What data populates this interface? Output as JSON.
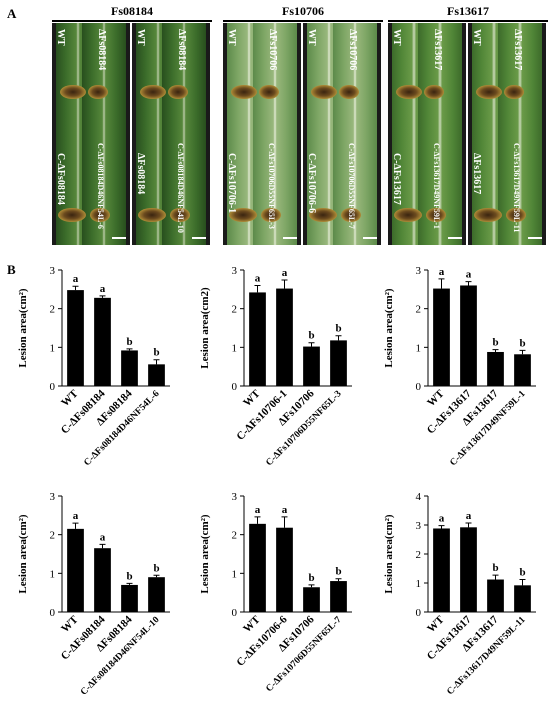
{
  "panel_a": {
    "letter": "A",
    "groups": [
      {
        "title": "Fs08184",
        "labels": [
          "WT",
          "ΔFs08184",
          "C-ΔFs08184",
          "C-ΔFs08184D46NF54L-6",
          "WT",
          "ΔFs08184",
          "ΔFs08184",
          "C-ΔFs08184D46NF54L-10"
        ]
      },
      {
        "title": "Fs10706",
        "labels": [
          "WT",
          "ΔFs10706",
          "C-ΔFs10706-1",
          "C-ΔFs10706D55NF65L-3",
          "WT",
          "ΔFs10706",
          "C-ΔFs10706-6",
          "C-ΔFs10706D55NF65L-7"
        ]
      },
      {
        "title": "Fs13617",
        "labels": [
          "WT",
          "ΔFs13617",
          "C-ΔFs13617",
          "C-ΔFs13617D49NF59L-1",
          "WT",
          "ΔFs13617",
          "ΔFs13617",
          "C-ΔFs13617D49NF59L-11"
        ]
      }
    ]
  },
  "panel_b": {
    "letter": "B"
  },
  "chart_data": [
    {
      "type": "bar",
      "categories": [
        "WT",
        "C-ΔFs08184",
        "ΔFs08184",
        "C-ΔFs08184D46NF54L-6"
      ],
      "values": [
        2.48,
        2.28,
        0.92,
        0.56
      ],
      "errors": [
        0.1,
        0.05,
        0.04,
        0.12
      ],
      "sig_letters": [
        "a",
        "a",
        "b",
        "b"
      ],
      "ylabel": "Lesion area(cm²)",
      "ylim": [
        0,
        3
      ],
      "yticks": [
        0,
        1,
        2,
        3
      ]
    },
    {
      "type": "bar",
      "categories": [
        "WT",
        "C-ΔFs10706-1",
        "ΔFs10706",
        "C-ΔFs10706D55NF65L-3"
      ],
      "values": [
        2.42,
        2.52,
        1.02,
        1.18
      ],
      "errors": [
        0.18,
        0.22,
        0.1,
        0.12
      ],
      "sig_letters": [
        "a",
        "a",
        "b",
        "b"
      ],
      "ylabel": "Lesion area(cm2)",
      "ylim": [
        0,
        3
      ],
      "yticks": [
        0,
        1,
        2,
        3
      ]
    },
    {
      "type": "bar",
      "categories": [
        "WT",
        "C-ΔFs13617",
        "ΔFs13617",
        "C-ΔFs13617D49NF59L-1"
      ],
      "values": [
        2.52,
        2.6,
        0.88,
        0.82
      ],
      "errors": [
        0.25,
        0.1,
        0.06,
        0.1
      ],
      "sig_letters": [
        "a",
        "a",
        "b",
        "b"
      ],
      "ylabel": "Lesion area(cm²)",
      "ylim": [
        0,
        3
      ],
      "yticks": [
        0,
        1,
        2,
        3
      ]
    },
    {
      "type": "bar",
      "categories": [
        "WT",
        "C-ΔFs08184",
        "ΔFs08184",
        "C-ΔFs08184D46NF54L-10"
      ],
      "values": [
        2.15,
        1.65,
        0.7,
        0.9
      ],
      "errors": [
        0.15,
        0.1,
        0.04,
        0.05
      ],
      "sig_letters": [
        "a",
        "a",
        "b",
        "b"
      ],
      "ylabel": "Lesion area(cm²)",
      "ylim": [
        0,
        3
      ],
      "yticks": [
        0,
        1,
        2,
        3
      ]
    },
    {
      "type": "bar",
      "categories": [
        "WT",
        "C-ΔFs10706-6",
        "ΔFs10706",
        "C-ΔFs10706D55NF65L-7"
      ],
      "values": [
        2.28,
        2.18,
        0.64,
        0.8
      ],
      "errors": [
        0.18,
        0.28,
        0.06,
        0.06
      ],
      "sig_letters": [
        "a",
        "a",
        "b",
        "b"
      ],
      "ylabel": "Lesion area(cm²)",
      "ylim": [
        0,
        3
      ],
      "yticks": [
        0,
        1,
        2,
        3
      ]
    },
    {
      "type": "bar",
      "categories": [
        "WT",
        "C-ΔFs13617",
        "ΔFs13617",
        "C-ΔFs13617D49NF59L-11"
      ],
      "values": [
        2.88,
        2.92,
        1.12,
        0.92
      ],
      "errors": [
        0.1,
        0.15,
        0.15,
        0.2
      ],
      "sig_letters": [
        "a",
        "a",
        "b",
        "b"
      ],
      "ylabel": "Lesion area(cm²)",
      "ylim": [
        0,
        4
      ],
      "yticks": [
        0,
        1,
        2,
        3,
        4
      ]
    }
  ]
}
